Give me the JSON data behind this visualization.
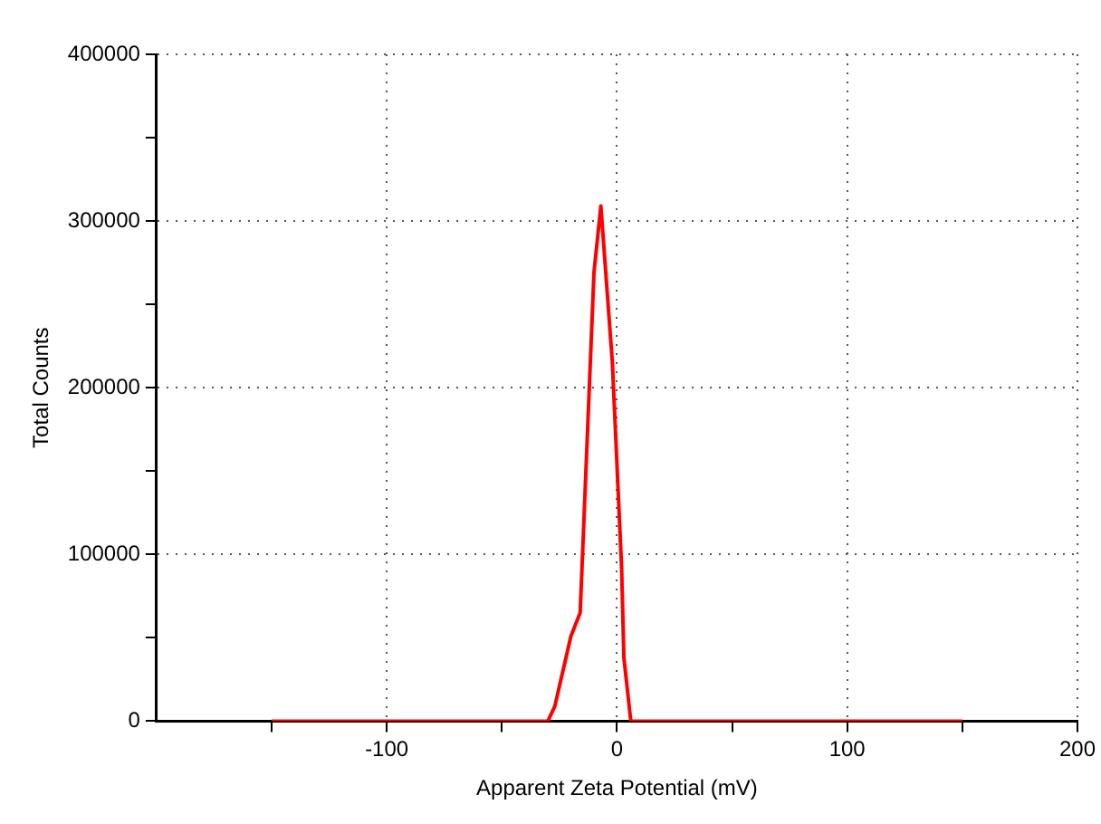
{
  "chart_data": {
    "type": "line",
    "xlabel": "Apparent Zeta Potential (mV)",
    "ylabel": "Total Counts",
    "x": [
      -150,
      -100,
      -50,
      -30,
      -27,
      -20,
      -16,
      -10,
      -7,
      -2,
      2,
      3,
      6,
      50,
      100,
      150
    ],
    "series": [
      {
        "color": "#ff0000",
        "values": [
          0,
          0,
          0,
          0,
          9000,
          51000,
          65000,
          269000,
          309000,
          215000,
          92000,
          38000,
          0,
          0,
          0,
          0
        ]
      }
    ],
    "xlim": [
      -200,
      200
    ],
    "ylim": [
      0,
      400000
    ],
    "xticks": [
      {
        "value": -150,
        "label": null
      },
      -100,
      {
        "value": -50,
        "label": null
      },
      0,
      {
        "value": 50,
        "label": null
      },
      100,
      {
        "value": 150,
        "label": null
      },
      200
    ],
    "yticks": [
      0,
      {
        "value": 50000,
        "label": null
      },
      100000,
      {
        "value": 150000,
        "label": null
      },
      200000,
      {
        "value": 250000,
        "label": null
      },
      300000,
      {
        "value": 350000,
        "label": null
      },
      400000
    ],
    "grid": true,
    "legend": false,
    "marker": "none",
    "line_style": "solid"
  }
}
